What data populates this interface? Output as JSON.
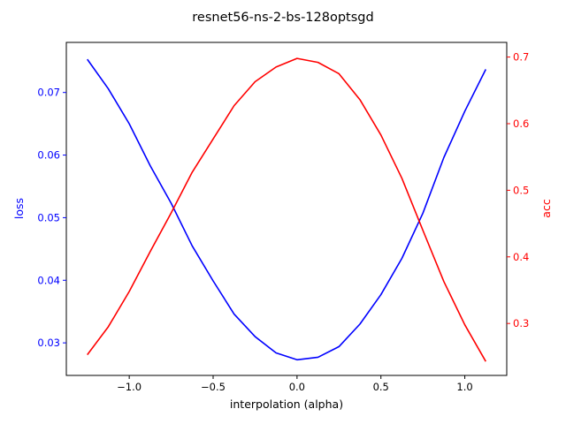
{
  "chart_data": {
    "type": "line",
    "title": "resnet56-ns-2-bs-128optsgd",
    "xlabel": "interpolation (alpha)",
    "ylabel_left": "loss",
    "ylabel_right": "acc",
    "xlim": [
      -1.375,
      1.25
    ],
    "ylim_left": [
      0.0248,
      0.078
    ],
    "ylim_right": [
      0.222,
      0.722
    ],
    "x_ticks": [
      -1.0,
      -0.5,
      0.0,
      0.5,
      1.0
    ],
    "x_tick_labels": [
      "−1.0",
      "−0.5",
      "0.0",
      "0.5",
      "1.0"
    ],
    "y_left_ticks": [
      0.03,
      0.04,
      0.05,
      0.06,
      0.07
    ],
    "y_left_tick_labels": [
      "0.03",
      "0.04",
      "0.05",
      "0.06",
      "0.07"
    ],
    "y_right_ticks": [
      0.3,
      0.4,
      0.5,
      0.6,
      0.7
    ],
    "y_right_tick_labels": [
      "0.3",
      "0.4",
      "0.5",
      "0.6",
      "0.7"
    ],
    "grid": false,
    "x": [
      -1.25,
      -1.125,
      -1.0,
      -0.875,
      -0.75,
      -0.625,
      -0.5,
      -0.375,
      -0.25,
      -0.125,
      0.0,
      0.125,
      0.25,
      0.375,
      0.5,
      0.625,
      0.75,
      0.875,
      1.0,
      1.125
    ],
    "series": [
      {
        "axis": "left",
        "color": "#0000ff",
        "values": [
          0.0753,
          0.0706,
          0.065,
          0.0583,
          0.0523,
          0.0455,
          0.0399,
          0.0346,
          0.031,
          0.0284,
          0.0273,
          0.0277,
          0.0294,
          0.033,
          0.0377,
          0.0435,
          0.0507,
          0.0596,
          0.067,
          0.0737
        ]
      },
      {
        "axis": "right",
        "color": "#ff0000",
        "values": [
          0.253,
          0.295,
          0.348,
          0.408,
          0.466,
          0.527,
          0.577,
          0.627,
          0.663,
          0.685,
          0.698,
          0.692,
          0.675,
          0.636,
          0.583,
          0.518,
          0.44,
          0.363,
          0.298,
          0.243
        ]
      }
    ]
  },
  "colors": {
    "axis_frame": "#000000",
    "left_axis": "#0000ff",
    "right_axis": "#ff0000",
    "background": "#ffffff"
  }
}
